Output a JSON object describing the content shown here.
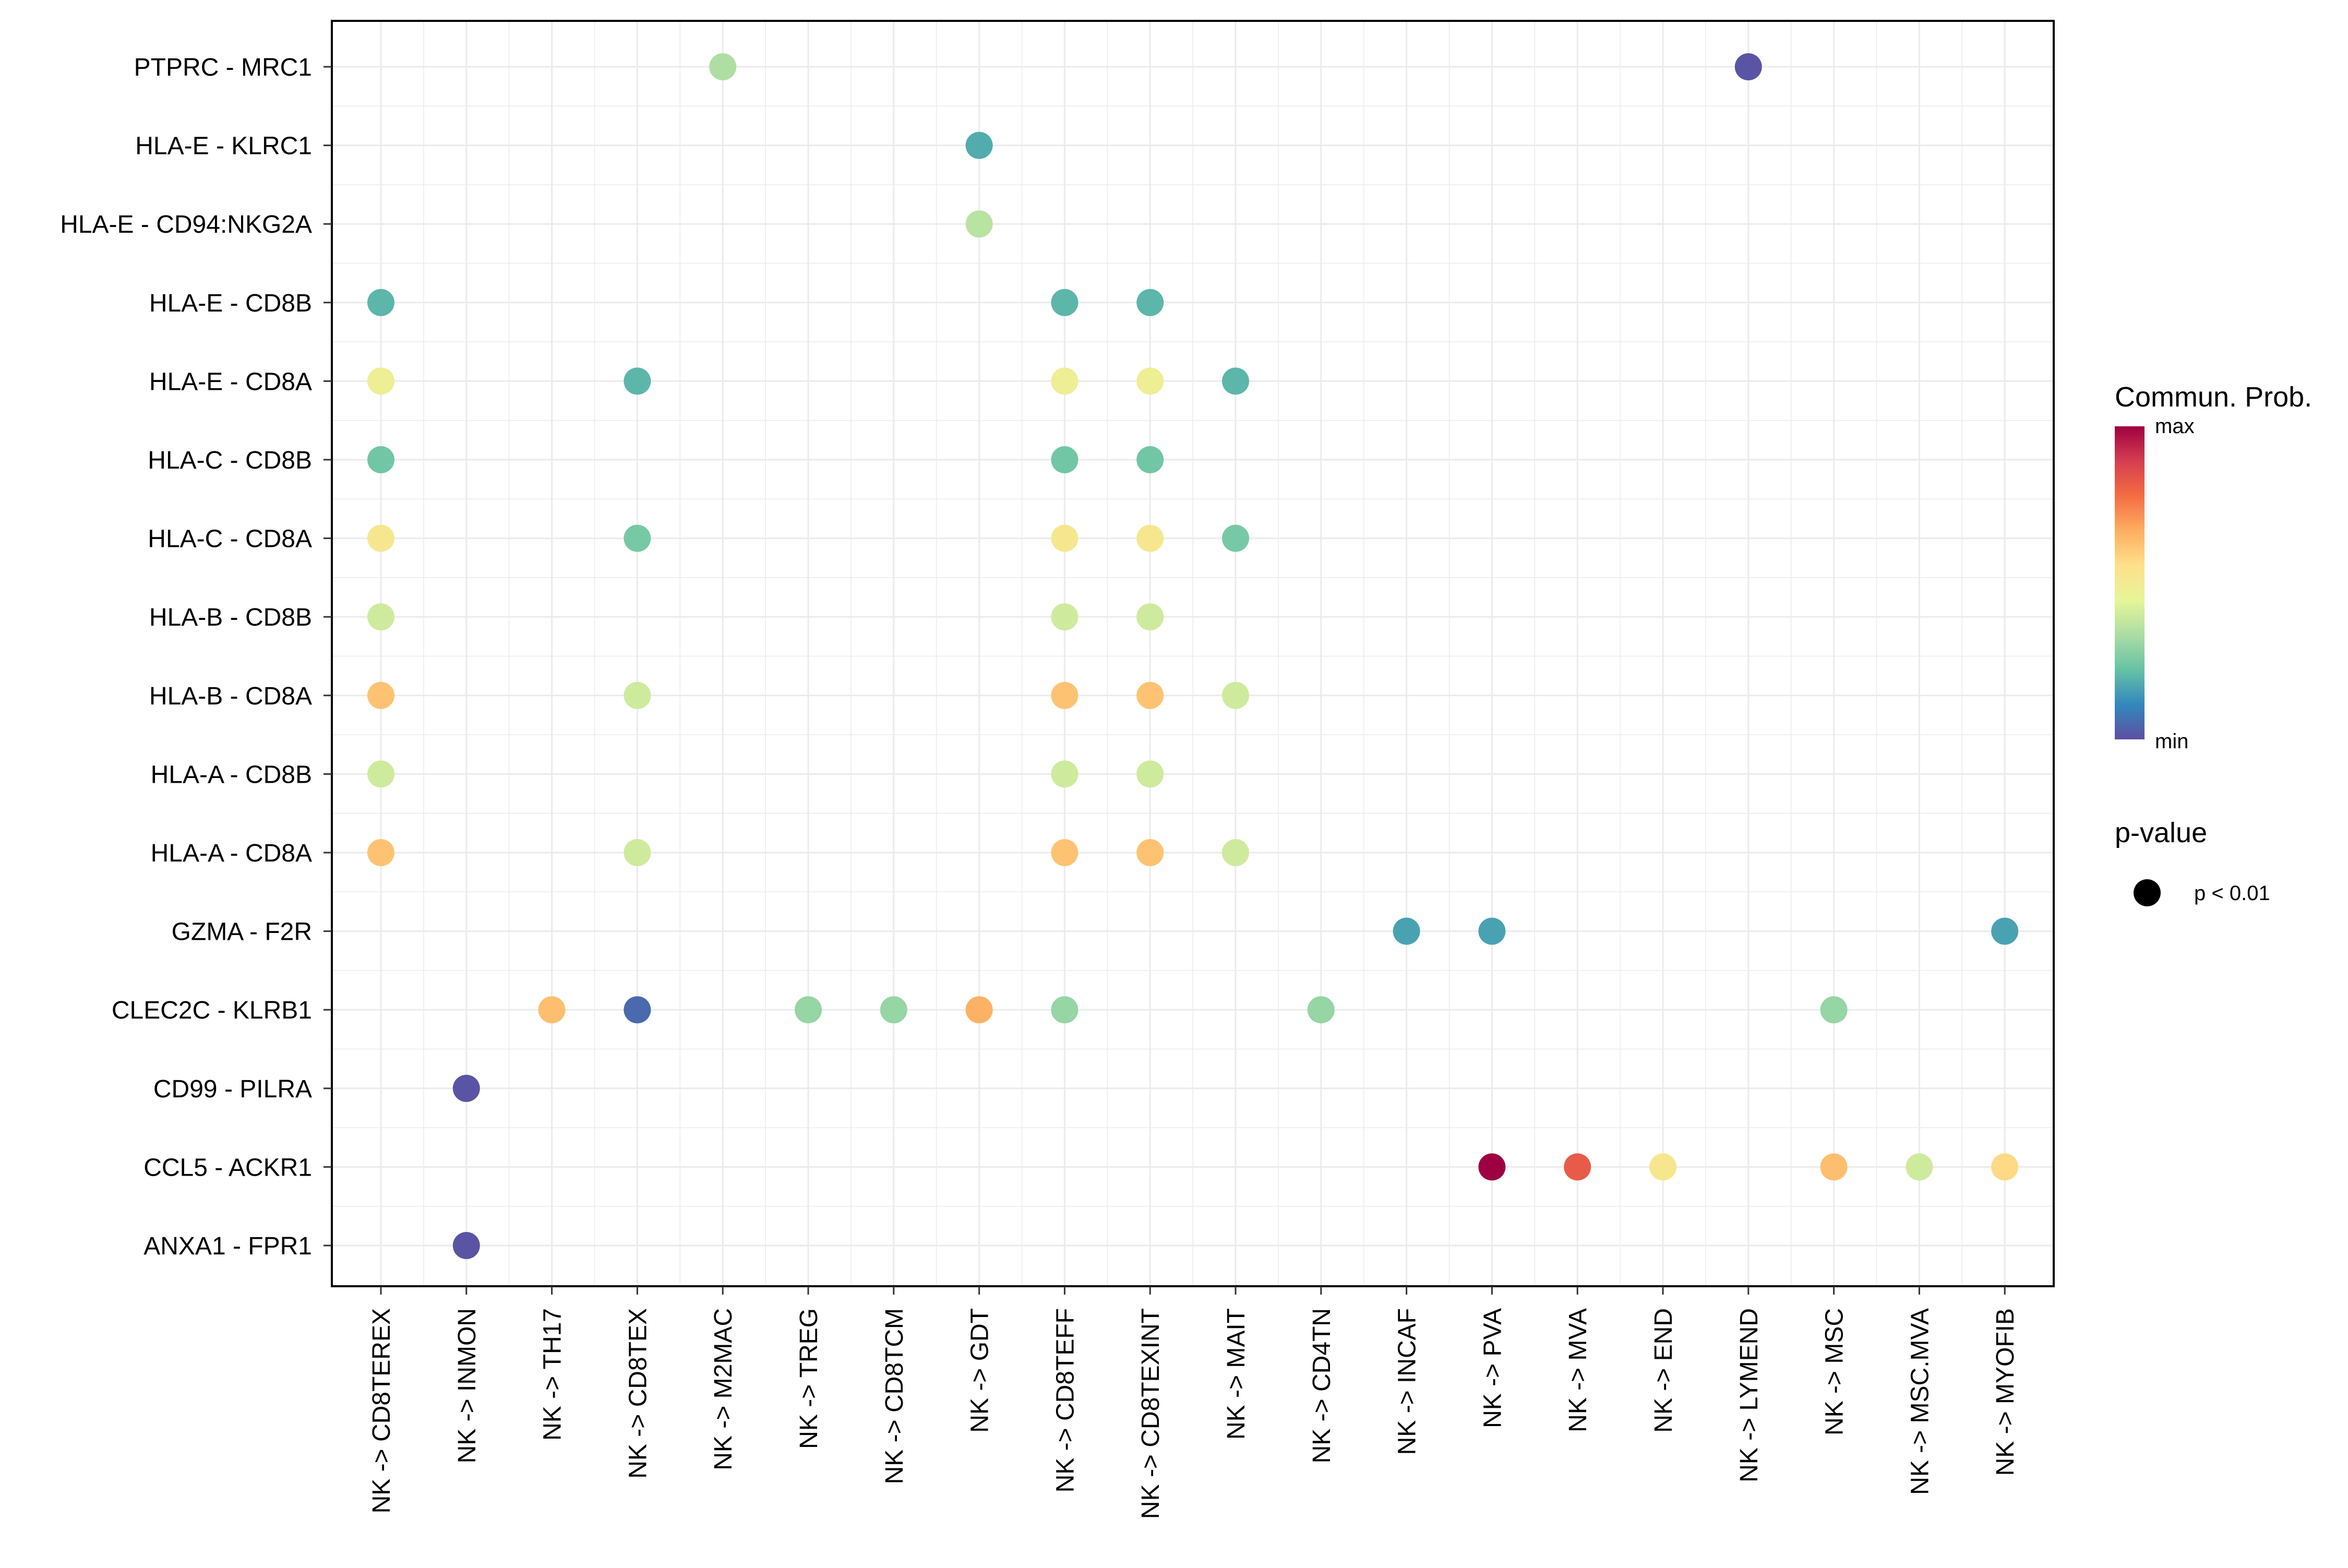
{
  "chart_data": {
    "type": "dot",
    "title": "",
    "xlabel": "",
    "ylabel": "",
    "grid": true,
    "categories_x": [
      "NK -> CD8TEREX",
      "NK -> INMON",
      "NK -> TH17",
      "NK -> CD8TEX",
      "NK -> M2MAC",
      "NK -> TREG",
      "NK -> CD8TCM",
      "NK -> GDT",
      "NK -> CD8TEFF",
      "NK -> CD8TEXINT",
      "NK -> MAIT",
      "NK -> CD4TN",
      "NK -> INCAF",
      "NK -> PVA",
      "NK -> MVA",
      "NK -> END",
      "NK -> LYMEND",
      "NK -> MSC",
      "NK -> MSC.MVA",
      "NK -> MYOFIB"
    ],
    "categories_y": [
      "PTPRC - MRC1",
      "HLA-E - KLRC1",
      "HLA-E - CD94:NKG2A",
      "HLA-E - CD8B",
      "HLA-E - CD8A",
      "HLA-C - CD8B",
      "HLA-C - CD8A",
      "HLA-B - CD8B",
      "HLA-B - CD8A",
      "HLA-A - CD8B",
      "HLA-A - CD8A",
      "GZMA - F2R",
      "CLEC2C - KLRB1",
      "CD99 - PILRA",
      "CCL5 - ACKR1",
      "ANXA1 - FPR1"
    ],
    "value_range": [
      0,
      1
    ],
    "points": [
      {
        "x": "NK -> M2MAC",
        "y": "PTPRC - MRC1",
        "value": 0.34
      },
      {
        "x": "NK -> LYMEND",
        "y": "PTPRC - MRC1",
        "value": 0.01
      },
      {
        "x": "NK -> GDT",
        "y": "HLA-E - KLRC1",
        "value": 0.18
      },
      {
        "x": "NK -> GDT",
        "y": "HLA-E - CD94:NKG2A",
        "value": 0.36
      },
      {
        "x": "NK -> CD8TEREX",
        "y": "HLA-E - CD8B",
        "value": 0.2
      },
      {
        "x": "NK -> CD8TEFF",
        "y": "HLA-E - CD8B",
        "value": 0.2
      },
      {
        "x": "NK -> CD8TEXINT",
        "y": "HLA-E - CD8B",
        "value": 0.2
      },
      {
        "x": "NK -> CD8TEREX",
        "y": "HLA-E - CD8A",
        "value": 0.48
      },
      {
        "x": "NK -> CD8TEX",
        "y": "HLA-E - CD8A",
        "value": 0.2
      },
      {
        "x": "NK -> CD8TEFF",
        "y": "HLA-E - CD8A",
        "value": 0.48
      },
      {
        "x": "NK -> CD8TEXINT",
        "y": "HLA-E - CD8A",
        "value": 0.48
      },
      {
        "x": "NK -> MAIT",
        "y": "HLA-E - CD8A",
        "value": 0.2
      },
      {
        "x": "NK -> CD8TEREX",
        "y": "HLA-C - CD8B",
        "value": 0.24
      },
      {
        "x": "NK -> CD8TEFF",
        "y": "HLA-C - CD8B",
        "value": 0.24
      },
      {
        "x": "NK -> CD8TEXINT",
        "y": "HLA-C - CD8B",
        "value": 0.24
      },
      {
        "x": "NK -> CD8TEREX",
        "y": "HLA-C - CD8A",
        "value": 0.52
      },
      {
        "x": "NK -> CD8TEX",
        "y": "HLA-C - CD8A",
        "value": 0.25
      },
      {
        "x": "NK -> CD8TEFF",
        "y": "HLA-C - CD8A",
        "value": 0.52
      },
      {
        "x": "NK -> CD8TEXINT",
        "y": "HLA-C - CD8A",
        "value": 0.52
      },
      {
        "x": "NK -> MAIT",
        "y": "HLA-C - CD8A",
        "value": 0.25
      },
      {
        "x": "NK -> CD8TEREX",
        "y": "HLA-B - CD8B",
        "value": 0.4
      },
      {
        "x": "NK -> CD8TEFF",
        "y": "HLA-B - CD8B",
        "value": 0.4
      },
      {
        "x": "NK -> CD8TEXINT",
        "y": "HLA-B - CD8B",
        "value": 0.4
      },
      {
        "x": "NK -> CD8TEREX",
        "y": "HLA-B - CD8A",
        "value": 0.62
      },
      {
        "x": "NK -> CD8TEX",
        "y": "HLA-B - CD8A",
        "value": 0.4
      },
      {
        "x": "NK -> CD8TEFF",
        "y": "HLA-B - CD8A",
        "value": 0.62
      },
      {
        "x": "NK -> CD8TEXINT",
        "y": "HLA-B - CD8A",
        "value": 0.62
      },
      {
        "x": "NK -> MAIT",
        "y": "HLA-B - CD8A",
        "value": 0.4
      },
      {
        "x": "NK -> CD8TEREX",
        "y": "HLA-A - CD8B",
        "value": 0.4
      },
      {
        "x": "NK -> CD8TEFF",
        "y": "HLA-A - CD8B",
        "value": 0.4
      },
      {
        "x": "NK -> CD8TEXINT",
        "y": "HLA-A - CD8B",
        "value": 0.4
      },
      {
        "x": "NK -> CD8TEREX",
        "y": "HLA-A - CD8A",
        "value": 0.62
      },
      {
        "x": "NK -> CD8TEX",
        "y": "HLA-A - CD8A",
        "value": 0.4
      },
      {
        "x": "NK -> CD8TEFF",
        "y": "HLA-A - CD8A",
        "value": 0.62
      },
      {
        "x": "NK -> CD8TEXINT",
        "y": "HLA-A - CD8A",
        "value": 0.62
      },
      {
        "x": "NK -> MAIT",
        "y": "HLA-A - CD8A",
        "value": 0.4
      },
      {
        "x": "NK -> INCAF",
        "y": "GZMA - F2R",
        "value": 0.16
      },
      {
        "x": "NK -> PVA",
        "y": "GZMA - F2R",
        "value": 0.16
      },
      {
        "x": "NK -> MYOFIB",
        "y": "GZMA - F2R",
        "value": 0.16
      },
      {
        "x": "NK -> TH17",
        "y": "CLEC2C - KLRB1",
        "value": 0.63
      },
      {
        "x": "NK -> CD8TEX",
        "y": "CLEC2C - KLRB1",
        "value": 0.05
      },
      {
        "x": "NK -> TREG",
        "y": "CLEC2C - KLRB1",
        "value": 0.3
      },
      {
        "x": "NK -> CD8TCM",
        "y": "CLEC2C - KLRB1",
        "value": 0.3
      },
      {
        "x": "NK -> GDT",
        "y": "CLEC2C - KLRB1",
        "value": 0.66
      },
      {
        "x": "NK -> CD8TEFF",
        "y": "CLEC2C - KLRB1",
        "value": 0.3
      },
      {
        "x": "NK -> CD4TN",
        "y": "CLEC2C - KLRB1",
        "value": 0.3
      },
      {
        "x": "NK -> MSC",
        "y": "CLEC2C - KLRB1",
        "value": 0.3
      },
      {
        "x": "NK -> INMON",
        "y": "CD99 - PILRA",
        "value": 0.01
      },
      {
        "x": "NK -> PVA",
        "y": "CCL5 - ACKR1",
        "value": 1.0
      },
      {
        "x": "NK -> MVA",
        "y": "CCL5 - ACKR1",
        "value": 0.82
      },
      {
        "x": "NK -> END",
        "y": "CCL5 - ACKR1",
        "value": 0.52
      },
      {
        "x": "NK -> MSC",
        "y": "CCL5 - ACKR1",
        "value": 0.63
      },
      {
        "x": "NK -> MSC.MVA",
        "y": "CCL5 - ACKR1",
        "value": 0.4
      },
      {
        "x": "NK -> MYOFIB",
        "y": "CCL5 - ACKR1",
        "value": 0.57
      },
      {
        "x": "NK -> INMON",
        "y": "ANXA1 - FPR1",
        "value": 0.01
      }
    ],
    "legend": {
      "color_title": "Commun. Prob.",
      "color_max_label": "max",
      "color_min_label": "min",
      "size_title": "p-value",
      "size_label": "p < 0.01",
      "placement": "right"
    },
    "palette": [
      "#5E4FA2",
      "#3288BD",
      "#66C2A5",
      "#ABDDA4",
      "#E6F598",
      "#FEE08B",
      "#FDAE61",
      "#F46D43",
      "#D53E4F",
      "#9E0142"
    ],
    "colors": {
      "grid": "#ebebeb",
      "panel_border": "#000000",
      "text": "#000000"
    }
  }
}
